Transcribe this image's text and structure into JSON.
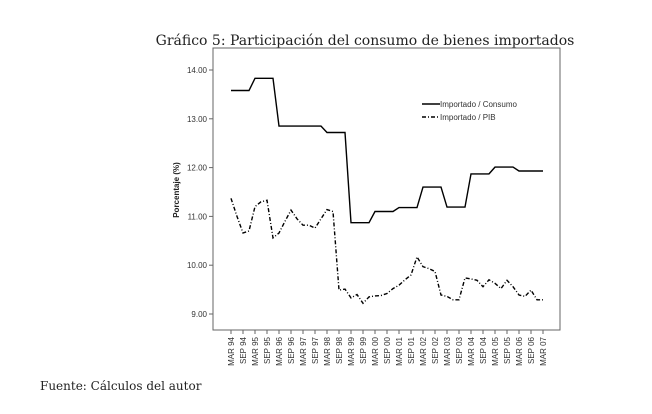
{
  "chart_data": {
    "type": "line",
    "title": "Gráfico 5: Participación del consumo de bienes importados",
    "xlabel": "",
    "ylabel": "Porcentaje (%)",
    "ylim": [
      8.8,
      14.5
    ],
    "yticks": [
      "14.00",
      "13.00",
      "12.00",
      "11.00",
      "10.00",
      "9.00"
    ],
    "ytick_values": [
      14,
      13,
      12,
      11,
      10,
      9
    ],
    "x_tick_labels": [
      "MAR 94",
      "SEP 94",
      "MAR 95",
      "SEP 95",
      "MAR 96",
      "SEP 96",
      "MAR 97",
      "SEP 97",
      "MAR 98",
      "SEP 98",
      "MAR 99",
      "SEP 99",
      "MAR 00",
      "SEP 00",
      "MAR 01",
      "SEP 01",
      "MAR 02",
      "SEP 02",
      "MAR 03",
      "SEP 03",
      "MAR 04",
      "SEP 04",
      "MAR 05",
      "SEP 05",
      "MAR 06",
      "SEP 06",
      "MAR 07"
    ],
    "x_frequency": "quarterly",
    "legend_position": "top-right",
    "grid": false,
    "series": [
      {
        "name": "Importado / Consumo",
        "style": "solid",
        "values": [
          13.58,
          13.58,
          13.58,
          13.58,
          13.83,
          13.83,
          13.83,
          13.83,
          12.85,
          12.85,
          12.85,
          12.85,
          12.85,
          12.85,
          12.85,
          12.85,
          12.72,
          12.72,
          12.72,
          12.72,
          10.87,
          10.87,
          10.87,
          10.87,
          11.1,
          11.1,
          11.1,
          11.1,
          11.18,
          11.18,
          11.18,
          11.18,
          11.6,
          11.6,
          11.6,
          11.6,
          11.19,
          11.19,
          11.19,
          11.19,
          11.87,
          11.87,
          11.87,
          11.87,
          12.01,
          12.01,
          12.01,
          12.01,
          11.93,
          11.93,
          11.93,
          11.93,
          11.93
        ]
      },
      {
        "name": "Importado / PIB",
        "style": "dash-dot",
        "values": [
          11.37,
          11.0,
          10.66,
          10.7,
          11.2,
          11.3,
          11.33,
          10.56,
          10.66,
          10.9,
          11.13,
          10.95,
          10.82,
          10.82,
          10.76,
          10.95,
          11.14,
          11.1,
          9.49,
          9.51,
          9.33,
          9.4,
          9.22,
          9.35,
          9.37,
          9.38,
          9.42,
          9.52,
          9.59,
          9.7,
          9.8,
          10.17,
          9.97,
          9.93,
          9.87,
          9.39,
          9.36,
          9.29,
          9.29,
          9.74,
          9.72,
          9.69,
          9.56,
          9.7,
          9.63,
          9.52,
          9.69,
          9.56,
          9.39,
          9.36,
          9.49,
          9.29,
          9.29
        ]
      }
    ]
  },
  "source_note": "Fuente: Cálculos del autor",
  "colors": {
    "line": "#000000",
    "axis": "#555555",
    "text": "#222222"
  }
}
